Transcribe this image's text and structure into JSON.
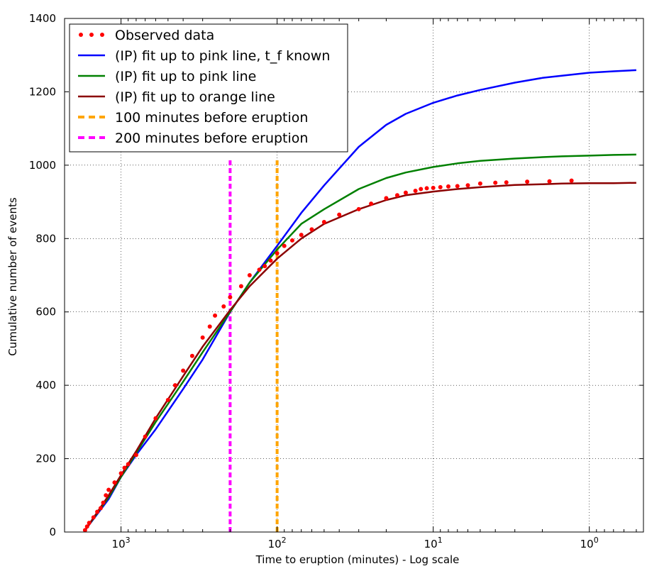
{
  "chart_data": {
    "type": "line",
    "title": "",
    "xlabel": "Time to eruption (minutes) - Log scale",
    "ylabel": "Cumulative number of events",
    "x_scale": "log",
    "x_reversed": true,
    "xlim": [
      2300,
      0.45
    ],
    "ylim": [
      0,
      1400
    ],
    "grid": true,
    "legend_position": "top-left",
    "x_ticks": [
      {
        "value": 1000,
        "base": "10",
        "exp": "3"
      },
      {
        "value": 100,
        "base": "10",
        "exp": "2"
      },
      {
        "value": 10,
        "base": "10",
        "exp": "1"
      },
      {
        "value": 1,
        "base": "10",
        "exp": "0"
      }
    ],
    "y_ticks": [
      "0",
      "200",
      "400",
      "600",
      "800",
      "1000",
      "1200",
      "1400"
    ],
    "series": [
      {
        "name": "Observed data",
        "style": "dots",
        "color": "#ff0000",
        "x": [
          1700,
          1650,
          1600,
          1500,
          1420,
          1350,
          1300,
          1250,
          1200,
          1100,
          1000,
          950,
          900,
          800,
          700,
          600,
          500,
          450,
          400,
          350,
          300,
          270,
          250,
          220,
          200,
          170,
          150,
          130,
          120,
          110,
          100,
          90,
          80,
          70,
          60,
          50,
          40,
          30,
          25,
          20,
          17,
          15,
          13,
          12,
          11,
          10,
          9,
          8,
          7,
          6,
          5,
          4,
          3.4,
          2.5,
          1.8,
          1.3
        ],
        "y": [
          5,
          15,
          25,
          40,
          55,
          65,
          80,
          100,
          115,
          135,
          160,
          175,
          185,
          210,
          260,
          310,
          360,
          400,
          440,
          480,
          530,
          560,
          590,
          615,
          640,
          670,
          700,
          715,
          725,
          740,
          760,
          780,
          795,
          810,
          825,
          845,
          865,
          880,
          895,
          910,
          918,
          925,
          930,
          935,
          937,
          938,
          940,
          942,
          943,
          945,
          950,
          952,
          953,
          955,
          956,
          958
        ]
      },
      {
        "name": "(IP) fit up to pink line, t_f known",
        "style": "line",
        "color": "#0000ff",
        "x": [
          1700,
          1200,
          1000,
          800,
          600,
          400,
          300,
          200,
          150,
          100,
          70,
          50,
          30,
          20,
          15,
          10,
          7,
          5,
          3,
          2,
          1.5,
          1,
          0.7,
          0.5
        ],
        "y": [
          5,
          90,
          150,
          210,
          280,
          390,
          470,
          600,
          680,
          780,
          870,
          945,
          1050,
          1110,
          1140,
          1170,
          1190,
          1205,
          1225,
          1238,
          1244,
          1252,
          1256,
          1259
        ]
      },
      {
        "name": "(IP) fit up to pink line",
        "style": "line",
        "color": "#008000",
        "x": [
          1700,
          1200,
          1000,
          800,
          600,
          400,
          300,
          200,
          150,
          100,
          70,
          50,
          30,
          20,
          15,
          10,
          7,
          5,
          3,
          2,
          1.5,
          1,
          0.7,
          0.5
        ],
        "y": [
          5,
          95,
          150,
          215,
          300,
          410,
          490,
          600,
          680,
          770,
          840,
          880,
          935,
          965,
          980,
          995,
          1005,
          1012,
          1018,
          1022,
          1024,
          1026,
          1028,
          1029
        ]
      },
      {
        "name": "(IP) fit up to orange line",
        "style": "line",
        "color": "#8b0000",
        "x": [
          1700,
          1200,
          1000,
          800,
          600,
          400,
          300,
          200,
          150,
          100,
          70,
          50,
          30,
          20,
          15,
          10,
          7,
          5,
          3,
          2,
          1.5,
          1,
          0.7,
          0.5
        ],
        "y": [
          5,
          100,
          155,
          220,
          310,
          425,
          505,
          605,
          670,
          745,
          800,
          840,
          880,
          905,
          918,
          928,
          935,
          940,
          946,
          948,
          950,
          951,
          951,
          952
        ]
      },
      {
        "name": "100 minutes before eruption",
        "style": "vline",
        "color": "#ffa500",
        "x": [
          100,
          100
        ],
        "y": [
          0,
          1020
        ]
      },
      {
        "name": "200 minutes before eruption",
        "style": "vline",
        "color": "#ff00ff",
        "x": [
          200,
          200
        ],
        "y": [
          0,
          1020
        ]
      }
    ]
  }
}
